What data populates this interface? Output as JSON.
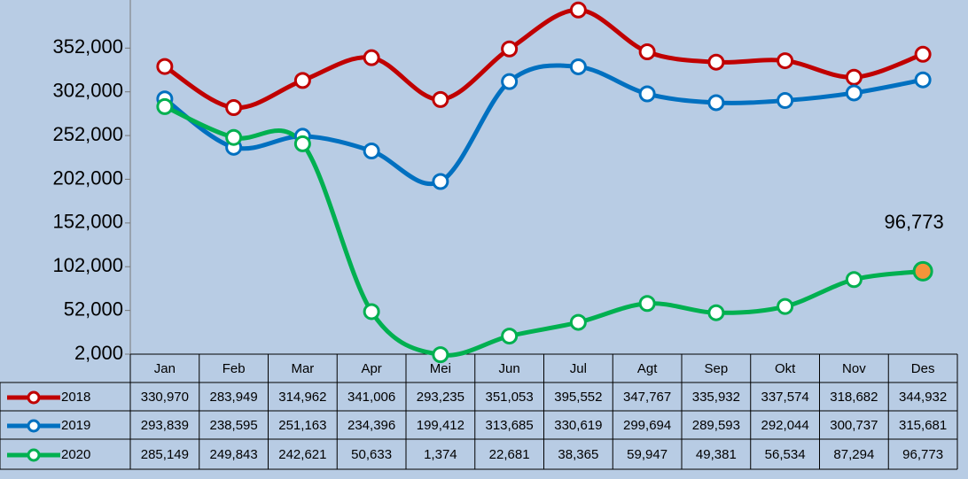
{
  "chart_data": {
    "type": "line",
    "categories": [
      "Jan",
      "Feb",
      "Mar",
      "Apr",
      "Mei",
      "Jun",
      "Jul",
      "Agt",
      "Sep",
      "Okt",
      "Nov",
      "Des"
    ],
    "series": [
      {
        "name": "2018",
        "color": "#c00000",
        "values": [
          330970,
          283949,
          314962,
          341006,
          293235,
          351053,
          395552,
          347767,
          335932,
          337574,
          318682,
          344932
        ],
        "value_labels": [
          "330,970",
          "283,949",
          "314,962",
          "341,006",
          "293,235",
          "351,053",
          "395,552",
          "347,767",
          "335,932",
          "337,574",
          "318,682",
          "344,932"
        ]
      },
      {
        "name": "2019",
        "color": "#0070c0",
        "values": [
          293839,
          238595,
          251163,
          234396,
          199412,
          313685,
          330619,
          299694,
          289593,
          292044,
          300737,
          315681
        ],
        "value_labels": [
          "293,839",
          "238,595",
          "251,163",
          "234,396",
          "199,412",
          "313,685",
          "330,619",
          "299,694",
          "289,593",
          "292,044",
          "300,737",
          "315,681"
        ]
      },
      {
        "name": "2020",
        "color": "#00b050",
        "values": [
          285149,
          249843,
          242621,
          50633,
          1374,
          22681,
          38365,
          59947,
          49381,
          56534,
          87294,
          96773
        ],
        "value_labels": [
          "285,149",
          "249,843",
          "242,621",
          "50,633",
          "1,374",
          "22,681",
          "38,365",
          "59,947",
          "49,381",
          "56,534",
          "87,294",
          "96,773"
        ]
      }
    ],
    "highlight": {
      "series": 2,
      "index": 11,
      "color": "#f5943a"
    },
    "ylim": [
      2000,
      407000
    ],
    "yticks": [
      {
        "value": 2000,
        "label": "2,000"
      },
      {
        "value": 52000,
        "label": "52,000"
      },
      {
        "value": 102000,
        "label": "102,000"
      },
      {
        "value": 152000,
        "label": "152,000"
      },
      {
        "value": 202000,
        "label": "202,000"
      },
      {
        "value": 252000,
        "label": "252,000"
      },
      {
        "value": 302000,
        "label": "302,000"
      },
      {
        "value": 352000,
        "label": "352,000"
      }
    ]
  }
}
